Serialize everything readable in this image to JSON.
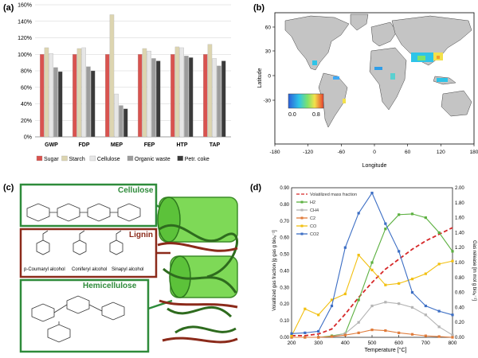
{
  "panels": {
    "a": "(a)",
    "b": "(b)",
    "c": "(c)",
    "d": "(d)"
  },
  "chart_data": [
    {
      "type": "bar",
      "title": "",
      "categories": [
        "GWP",
        "FDP",
        "MEP",
        "FEP",
        "HTP",
        "TAP"
      ],
      "ylim": [
        0,
        160
      ],
      "yticks": [
        "0%",
        "20%",
        "40%",
        "60%",
        "80%",
        "100%",
        "120%",
        "140%",
        "160%"
      ],
      "grid": true,
      "legend": "bottom",
      "series": [
        {
          "name": "Sugar",
          "color": "#d9534f",
          "values": [
            100,
            100,
            100,
            100,
            100,
            100
          ]
        },
        {
          "name": "Starch",
          "color": "#ddd5b0",
          "values": [
            108,
            107,
            148,
            107,
            109,
            112
          ]
        },
        {
          "name": "Cellulose",
          "color": "#e6e6e6",
          "values": [
            101,
            108,
            52,
            104,
            108,
            95
          ]
        },
        {
          "name": "Organic waste",
          "color": "#9c9c9c",
          "values": [
            84,
            85,
            38,
            95,
            98,
            86
          ]
        },
        {
          "name": "Petr. coke",
          "color": "#3a3a3a",
          "values": [
            79,
            80,
            34,
            92,
            96,
            92
          ]
        }
      ]
    },
    {
      "type": "heatmap",
      "title": "",
      "xlabel": "Longitude",
      "ylabel": "Latitude",
      "xticks": [
        "-180",
        "-120",
        "-60",
        "0",
        "60",
        "120",
        "180"
      ],
      "yticks": [
        "60",
        "30",
        "0",
        "-30"
      ],
      "colorbar": {
        "min": "0.0",
        "max": "0.8"
      }
    },
    {
      "type": "line",
      "xlabel": "Temperature [°C]",
      "ylabel": "Volatilized gas fraction [g gas g bioₐ⁻¹]",
      "ylabel2": "Gas release [m mol g bioₐ⁻¹]",
      "xlim": [
        200,
        800
      ],
      "ylim": [
        0,
        0.9
      ],
      "ylim2": [
        0,
        2.0
      ],
      "xticks": [
        "200",
        "300",
        "400",
        "500",
        "600",
        "700",
        "800"
      ],
      "yticks": [
        "0.00",
        "0.10",
        "0.20",
        "0.30",
        "0.40",
        "0.50",
        "0.60",
        "0.70",
        "0.80",
        "0.90"
      ],
      "yticks2": [
        "0.00",
        "0.20",
        "0.40",
        "0.60",
        "0.80",
        "1.00",
        "1.20",
        "1.40",
        "1.60",
        "1.80",
        "2.00"
      ],
      "legend": "top-left",
      "x": [
        200,
        250,
        300,
        350,
        400,
        450,
        500,
        550,
        600,
        650,
        700,
        750,
        800
      ],
      "series": [
        {
          "name": "Volatilized mass fraction",
          "color": "#d62728",
          "dashed": true,
          "axis": "left",
          "values": [
            0.01,
            0.01,
            0.02,
            0.05,
            0.14,
            0.24,
            0.33,
            0.41,
            0.47,
            0.53,
            0.58,
            0.62,
            0.66
          ]
        },
        {
          "name": "H2",
          "color": "#5cb040",
          "axis": "right",
          "values": [
            0.0,
            0.0,
            0.0,
            0.02,
            0.05,
            0.5,
            1.0,
            1.45,
            1.64,
            1.65,
            1.6,
            1.4,
            1.15
          ]
        },
        {
          "name": "CH4",
          "color": "#b4b4b4",
          "axis": "right",
          "values": [
            0.0,
            0.0,
            0.0,
            0.01,
            0.05,
            0.2,
            0.42,
            0.47,
            0.45,
            0.4,
            0.3,
            0.14,
            0.03
          ]
        },
        {
          "name": "C2",
          "color": "#e07b3a",
          "axis": "right",
          "values": [
            0.0,
            0.0,
            0.0,
            0.01,
            0.03,
            0.06,
            0.1,
            0.09,
            0.06,
            0.04,
            0.02,
            0.01,
            0.0
          ]
        },
        {
          "name": "CO",
          "color": "#f2c012",
          "axis": "right",
          "values": [
            0.02,
            0.38,
            0.3,
            0.5,
            0.58,
            1.1,
            0.9,
            0.7,
            0.72,
            0.78,
            0.85,
            0.98,
            1.02
          ]
        },
        {
          "name": "CO2",
          "color": "#3c6ec4",
          "axis": "right",
          "values": [
            0.05,
            0.06,
            0.08,
            0.42,
            1.2,
            1.66,
            1.93,
            1.52,
            1.15,
            0.6,
            0.42,
            0.35,
            0.3
          ]
        }
      ]
    }
  ],
  "figure_c": {
    "cellulose": "Cellulose",
    "lignin": "Lignin",
    "hemicellulose": "Hemicellulose",
    "alcohols": [
      "p-Coumaryl alcohol",
      "Coniferyl alcohol",
      "Sinapyl alcohol"
    ],
    "colors": {
      "cellulose": "#2e8b3a",
      "lignin": "#8b2a1a",
      "fiber": "#7ed957"
    }
  }
}
